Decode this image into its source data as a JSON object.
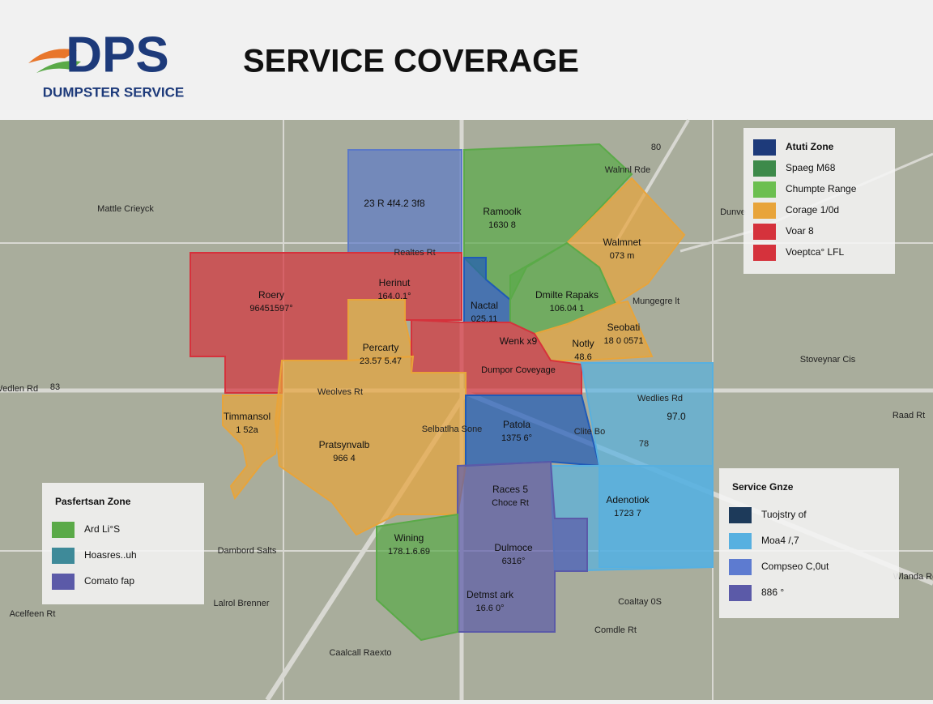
{
  "header": {
    "logo_mark": "DPS",
    "logo_text": "DUMPSTER SERVICE",
    "title": "SERVICE COVERAGE"
  },
  "zones": [
    {
      "name": "23 R 4f4.2 3f8"
    },
    {
      "name": "Ramoolk",
      "detail": "1630 8"
    },
    {
      "name": "Walmnet",
      "detail": "073 m"
    },
    {
      "name": "Roery",
      "detail": "96451597°"
    },
    {
      "name": "Herinut",
      "detail": "164.0.1°"
    },
    {
      "name": "Nactal",
      "detail": "025.11"
    },
    {
      "name": "Dmilte Rapaks",
      "detail": "106.04 1"
    },
    {
      "name": "Seobati",
      "detail": "18 0 0571"
    },
    {
      "name": "Percarty",
      "detail": "23.57 5.47"
    },
    {
      "name": "Wenk x9",
      "detail": "Dumpor Coveyage"
    },
    {
      "name": "Notly",
      "detail": "48.6"
    },
    {
      "name": "Timmansol",
      "detail": "1 52a"
    },
    {
      "name": "Pratsynvalb",
      "detail": "966 4"
    },
    {
      "name": "Patola",
      "detail": "1375 6°"
    },
    {
      "name": "97.0"
    },
    {
      "name": "Adenotiok",
      "detail": "1723 7"
    },
    {
      "name": "Races 5",
      "detail": "Choce Rt"
    },
    {
      "name": "Dulmoce",
      "detail": "6316°"
    },
    {
      "name": "Wining",
      "detail": "178.1.6.69"
    },
    {
      "name": "Detmst ark",
      "detail": "16.6 0°"
    }
  ],
  "map_labels": [
    "Selbatlha Sone",
    "Mattle Crieyck",
    "Realtes Rt",
    "Weolves Rt",
    "Wedlies Rd",
    "Mungegre lt",
    "Stoveynar Cis",
    "Raad Rt",
    "Clite Bo",
    "Wlanda Rd",
    "Caalcall Raexto",
    "Comdle Rt",
    "Coaltay 0S",
    "Dambord Salts",
    "Lalrol Brenner",
    "Acelfeen Rt",
    "Wedlen Rd",
    "Walnnl Rde",
    "Dunve",
    "80",
    "83",
    "78"
  ],
  "legends": [
    {
      "title": "Atuti Zone",
      "items": [
        "Spaeg M68",
        "Chumpte Range",
        "Corage 1/0d",
        "Voar 8",
        "Voeptca° LFL"
      ]
    },
    {
      "title": "Pasfertsan Zone",
      "items": [
        "Ard Li°S",
        "Hoasres..uh",
        "Comato fap"
      ]
    },
    {
      "title": "Service Gnze",
      "items": [
        "Tuojstry of",
        "Moa4 /,7",
        "Compseo C,0ut",
        "886 °"
      ]
    }
  ]
}
